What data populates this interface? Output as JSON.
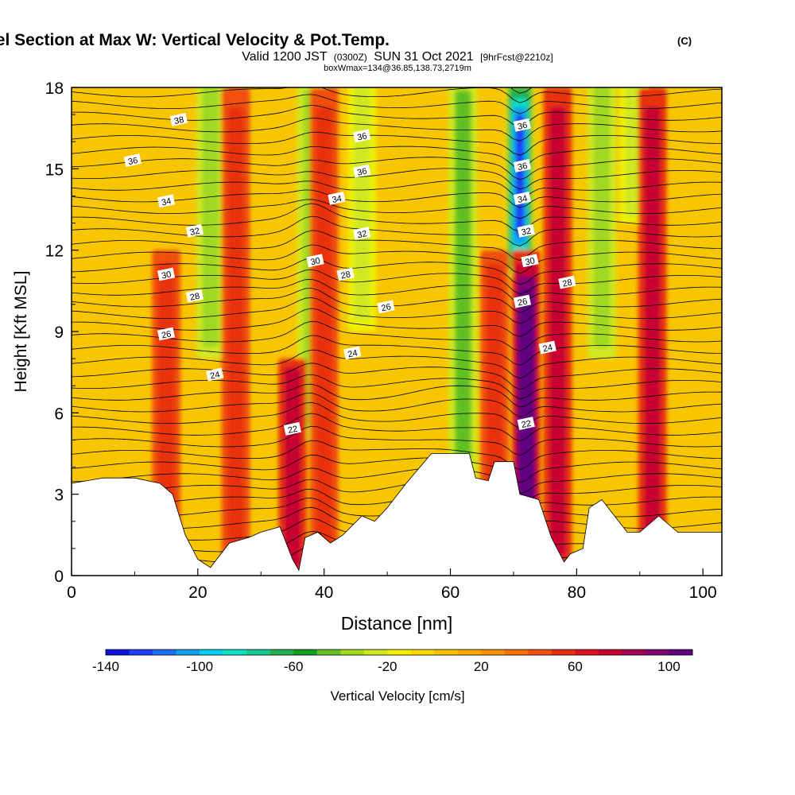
{
  "chart_data": {
    "type": "heatmap",
    "title": {
      "main": "Wind-Parallel Section at Max W: Vertical Velocity & Pot.Temp.",
      "main_suffix": "(C)",
      "line2_a": "Valid 1200 JST",
      "line2_b": "(0300Z)",
      "line2_c": "SUN 31 Oct 2021",
      "line2_d": "[9hrFcst@2210z]",
      "line3": "boxWmax=134@36.85,138.73,2719m"
    },
    "xlabel": "Distance [nm]",
    "ylabel": "Height [Kft MSL]",
    "xlim": [
      0,
      103
    ],
    "ylim": [
      0,
      18
    ],
    "x_ticks": [
      "0",
      "20",
      "40",
      "60",
      "80",
      "100"
    ],
    "y_ticks": [
      "0",
      "3",
      "6",
      "9",
      "12",
      "15",
      "18"
    ],
    "colorbar": {
      "label": "Vertical Velocity [cm/s]",
      "range": [
        -140,
        120
      ],
      "step": 10,
      "tick_labels": [
        "-140",
        "-100",
        "-60",
        "-20",
        "20",
        "60",
        "100"
      ],
      "colors": [
        "#1010e0",
        "#1e3ef5",
        "#1e6ef5",
        "#10a0f0",
        "#00d0f0",
        "#10e0c0",
        "#18c890",
        "#20b050",
        "#10a020",
        "#60c020",
        "#a0d820",
        "#d0e820",
        "#f0f000",
        "#f8d800",
        "#f8c000",
        "#f8a800",
        "#f89000",
        "#f87000",
        "#f05010",
        "#e83010",
        "#e01020",
        "#c80030",
        "#a00050",
        "#800070",
        "#600080"
      ]
    },
    "terrain_kft": [
      [
        0,
        3.4
      ],
      [
        5,
        3.6
      ],
      [
        10,
        3.6
      ],
      [
        14,
        3.4
      ],
      [
        16,
        3.0
      ],
      [
        18,
        1.5
      ],
      [
        20,
        0.6
      ],
      [
        22,
        0.3
      ],
      [
        25,
        1.2
      ],
      [
        28,
        1.4
      ],
      [
        30,
        1.6
      ],
      [
        33,
        1.8
      ],
      [
        34,
        1.2
      ],
      [
        35,
        0.6
      ],
      [
        36,
        0.2
      ],
      [
        37,
        1.4
      ],
      [
        39,
        1.6
      ],
      [
        41,
        1.2
      ],
      [
        43,
        1.5
      ],
      [
        46,
        2.2
      ],
      [
        48,
        2.0
      ],
      [
        50,
        2.5
      ],
      [
        53,
        3.4
      ],
      [
        57,
        4.5
      ],
      [
        60,
        4.5
      ],
      [
        63,
        4.5
      ],
      [
        64,
        3.6
      ],
      [
        66,
        3.5
      ],
      [
        67,
        4.2
      ],
      [
        70,
        4.2
      ],
      [
        71,
        3.0
      ],
      [
        74,
        2.8
      ],
      [
        76,
        1.4
      ],
      [
        78,
        0.5
      ],
      [
        79,
        0.8
      ],
      [
        81,
        1.0
      ],
      [
        82,
        2.5
      ],
      [
        84,
        2.8
      ],
      [
        86,
        2.2
      ],
      [
        88,
        1.6
      ],
      [
        90,
        1.6
      ],
      [
        93,
        2.2
      ],
      [
        96,
        1.6
      ],
      [
        100,
        1.6
      ],
      [
        103,
        1.6
      ]
    ],
    "updraft_bands": [
      {
        "x": 72,
        "w_cm_s": 130,
        "z_top_kft": 12
      },
      {
        "x": 35,
        "w_cm_s": 60,
        "z_top_kft": 8
      },
      {
        "x": 15,
        "w_cm_s": 40,
        "z_top_kft": 12
      },
      {
        "x": 26,
        "w_cm_s": 40,
        "z_top_kft": 18
      },
      {
        "x": 40,
        "w_cm_s": 40,
        "z_top_kft": 18
      },
      {
        "x": 67,
        "w_cm_s": 40,
        "z_top_kft": 12
      },
      {
        "x": 77,
        "w_cm_s": 60,
        "z_top_kft": 18
      },
      {
        "x": 92,
        "w_cm_s": 60,
        "z_top_kft": 18
      }
    ],
    "downdraft_bands": [
      {
        "x": 71,
        "w_cm_s": -140,
        "z_bottom_kft": 11
      },
      {
        "x": 22,
        "w_cm_s": -50,
        "z_bottom_kft": 8
      },
      {
        "x": 38,
        "w_cm_s": -50,
        "z_bottom_kft": 5
      },
      {
        "x": 46,
        "w_cm_s": -40,
        "z_bottom_kft": 9
      },
      {
        "x": 62,
        "w_cm_s": -60,
        "z_bottom_kft": 3.5
      },
      {
        "x": 84,
        "w_cm_s": -50,
        "z_bottom_kft": 8
      },
      {
        "x": 89,
        "w_cm_s": -40,
        "z_bottom_kft": 13
      }
    ],
    "theta_contours_c": [
      22,
      24,
      26,
      28,
      30,
      32,
      34,
      36,
      38
    ],
    "contour_labels": [
      {
        "text": "38",
        "x": 17,
        "z": 16.8
      },
      {
        "text": "36",
        "x": 9.7,
        "z": 15.3
      },
      {
        "text": "36",
        "x": 46,
        "z": 16.2
      },
      {
        "text": "36",
        "x": 71.4,
        "z": 16.6
      },
      {
        "text": "36",
        "x": 71.4,
        "z": 15.1
      },
      {
        "text": "36",
        "x": 46,
        "z": 14.9
      },
      {
        "text": "34",
        "x": 15,
        "z": 13.8
      },
      {
        "text": "34",
        "x": 42,
        "z": 13.9
      },
      {
        "text": "34",
        "x": 71.4,
        "z": 13.9
      },
      {
        "text": "32",
        "x": 19.5,
        "z": 12.7
      },
      {
        "text": "32",
        "x": 46,
        "z": 12.6
      },
      {
        "text": "32",
        "x": 72,
        "z": 12.7
      },
      {
        "text": "30",
        "x": 38.6,
        "z": 11.6
      },
      {
        "text": "30",
        "x": 72.6,
        "z": 11.6
      },
      {
        "text": "30",
        "x": 15,
        "z": 11.1
      },
      {
        "text": "28",
        "x": 43.4,
        "z": 11.1
      },
      {
        "text": "28",
        "x": 78.5,
        "z": 10.8
      },
      {
        "text": "28",
        "x": 19.5,
        "z": 10.3
      },
      {
        "text": "26",
        "x": 71.4,
        "z": 10.1
      },
      {
        "text": "26",
        "x": 49.8,
        "z": 9.9
      },
      {
        "text": "26",
        "x": 15,
        "z": 8.9
      },
      {
        "text": "24",
        "x": 75.4,
        "z": 8.4
      },
      {
        "text": "24",
        "x": 44.5,
        "z": 8.2
      },
      {
        "text": "24",
        "x": 22.7,
        "z": 7.4
      },
      {
        "text": "22",
        "x": 35,
        "z": 5.4
      },
      {
        "text": "22",
        "x": 72,
        "z": 5.6
      }
    ]
  }
}
